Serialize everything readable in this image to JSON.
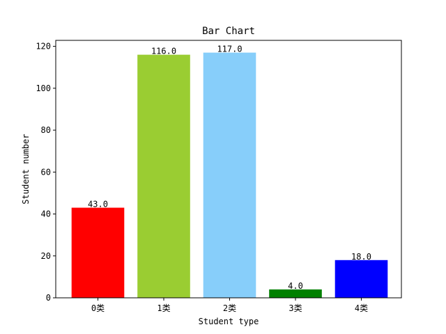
{
  "chart_data": {
    "type": "bar",
    "title": "Bar Chart",
    "xlabel": "Student type",
    "ylabel": "Student number",
    "categories": [
      "0类",
      "1类",
      "2类",
      "3类",
      "4类"
    ],
    "values": [
      43,
      116,
      117,
      4,
      18
    ],
    "value_labels": [
      "43.0",
      "116.0",
      "117.0",
      "4.0",
      "18.0"
    ],
    "colors": [
      "#ff0000",
      "#9acd32",
      "#87cefa",
      "#008000",
      "#0000ff"
    ],
    "ylim": [
      0,
      122.85
    ],
    "yticks": [
      0,
      20,
      40,
      60,
      80,
      100,
      120
    ],
    "grid": false,
    "legend": "none"
  }
}
